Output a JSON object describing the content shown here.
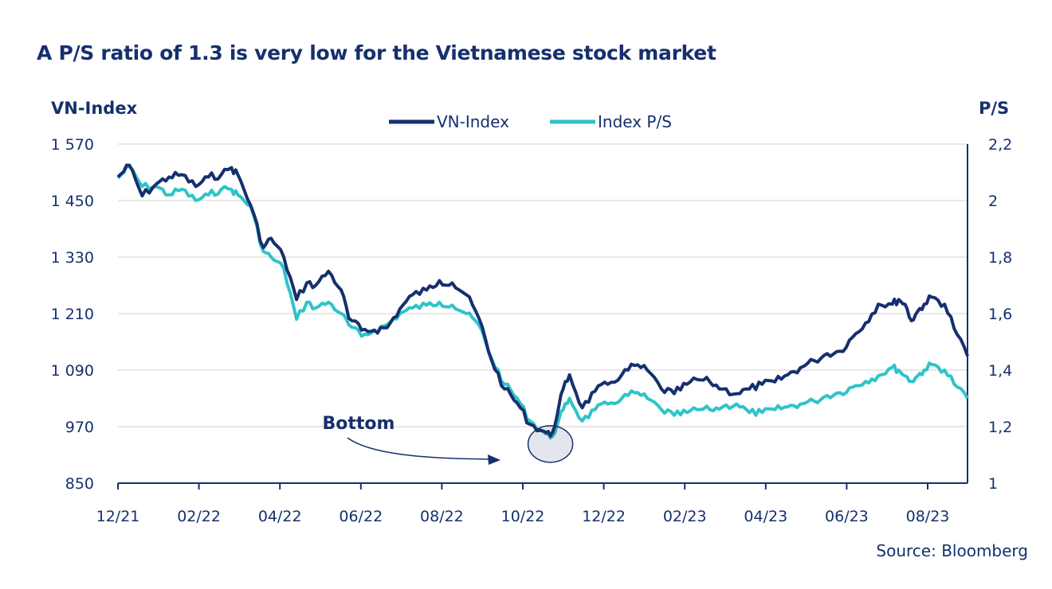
{
  "chart_data": {
    "type": "line",
    "title": "A P/S ratio of 1.3 is very low for the Vietnamese stock market",
    "ylabel": "VN-Index",
    "y2label": "P/S",
    "xlabel": "",
    "x_ticks": [
      "12/21",
      "02/22",
      "04/22",
      "06/22",
      "08/22",
      "10/22",
      "12/22",
      "02/23",
      "04/23",
      "06/23",
      "08/23"
    ],
    "y_ticks": [
      "1 570",
      "1 450",
      "1 330",
      "1 210",
      "1 090",
      "970",
      "850"
    ],
    "y2_ticks": [
      "2,2",
      "2",
      "1,8",
      "1,6",
      "1,4",
      "1,2",
      "1"
    ],
    "ylim": [
      850,
      1570
    ],
    "y2lim": [
      1,
      2.2
    ],
    "legend": "top-center",
    "grid": true,
    "series": [
      {
        "name": "VN-Index",
        "axis": "left",
        "color": "#16306e",
        "points": [
          [
            "2021-12-01",
            1500
          ],
          [
            "2021-12-10",
            1525
          ],
          [
            "2021-12-20",
            1460
          ],
          [
            "2021-12-31",
            1485
          ],
          [
            "2022-01-10",
            1500
          ],
          [
            "2022-01-20",
            1505
          ],
          [
            "2022-01-31",
            1480
          ],
          [
            "2022-02-10",
            1500
          ],
          [
            "2022-02-20",
            1505
          ],
          [
            "2022-02-28",
            1520
          ],
          [
            "2022-03-05",
            1505
          ],
          [
            "2022-03-15",
            1440
          ],
          [
            "2022-03-25",
            1350
          ],
          [
            "2022-03-31",
            1370
          ],
          [
            "2022-04-10",
            1330
          ],
          [
            "2022-04-20",
            1240
          ],
          [
            "2022-04-28",
            1275
          ],
          [
            "2022-05-05",
            1270
          ],
          [
            "2022-05-15",
            1300
          ],
          [
            "2022-05-25",
            1260
          ],
          [
            "2022-05-31",
            1200
          ],
          [
            "2022-06-10",
            1175
          ],
          [
            "2022-06-20",
            1175
          ],
          [
            "2022-06-30",
            1180
          ],
          [
            "2022-07-10",
            1220
          ],
          [
            "2022-07-20",
            1250
          ],
          [
            "2022-07-31",
            1260
          ],
          [
            "2022-08-10",
            1280
          ],
          [
            "2022-08-20",
            1275
          ],
          [
            "2022-08-31",
            1250
          ],
          [
            "2022-09-10",
            1200
          ],
          [
            "2022-09-20",
            1110
          ],
          [
            "2022-09-30",
            1050
          ],
          [
            "2022-10-10",
            1020
          ],
          [
            "2022-10-20",
            975
          ],
          [
            "2022-10-31",
            960
          ],
          [
            "2022-11-05",
            950
          ],
          [
            "2022-11-10",
            990
          ],
          [
            "2022-11-15",
            1050
          ],
          [
            "2022-11-20",
            1080
          ],
          [
            "2022-11-30",
            1010
          ],
          [
            "2022-12-10",
            1045
          ],
          [
            "2022-12-20",
            1060
          ],
          [
            "2022-12-31",
            1080
          ],
          [
            "2023-01-10",
            1100
          ],
          [
            "2023-01-20",
            1090
          ],
          [
            "2023-01-31",
            1050
          ],
          [
            "2023-02-10",
            1040
          ],
          [
            "2023-02-20",
            1060
          ],
          [
            "2023-02-28",
            1070
          ],
          [
            "2023-03-10",
            1065
          ],
          [
            "2023-03-20",
            1050
          ],
          [
            "2023-03-31",
            1040
          ],
          [
            "2023-04-10",
            1050
          ],
          [
            "2023-04-20",
            1060
          ],
          [
            "2023-04-30",
            1065
          ],
          [
            "2023-05-10",
            1080
          ],
          [
            "2023-05-20",
            1095
          ],
          [
            "2023-05-31",
            1110
          ],
          [
            "2023-06-10",
            1125
          ],
          [
            "2023-06-20",
            1130
          ],
          [
            "2023-06-30",
            1160
          ],
          [
            "2023-07-10",
            1190
          ],
          [
            "2023-07-20",
            1230
          ],
          [
            "2023-07-31",
            1230
          ],
          [
            "2023-08-05",
            1240
          ],
          [
            "2023-08-10",
            1230
          ],
          [
            "2023-08-15",
            1195
          ],
          [
            "2023-08-20",
            1215
          ],
          [
            "2023-08-25",
            1230
          ],
          [
            "2023-08-31",
            1245
          ],
          [
            "2023-09-10",
            1230
          ],
          [
            "2023-09-20",
            1165
          ],
          [
            "2023-09-28",
            1120
          ]
        ]
      },
      {
        "name": "Index P/S",
        "axis": "right",
        "color": "#2ec4c8",
        "points": [
          [
            "2021-12-01",
            2.08
          ],
          [
            "2021-12-10",
            2.12
          ],
          [
            "2021-12-20",
            2.05
          ],
          [
            "2021-12-31",
            2.05
          ],
          [
            "2022-01-10",
            2.02
          ],
          [
            "2022-01-20",
            2.04
          ],
          [
            "2022-01-31",
            2.0
          ],
          [
            "2022-02-10",
            2.02
          ],
          [
            "2022-02-20",
            2.04
          ],
          [
            "2022-02-28",
            2.04
          ],
          [
            "2022-03-05",
            2.02
          ],
          [
            "2022-03-15",
            1.98
          ],
          [
            "2022-03-25",
            1.82
          ],
          [
            "2022-03-31",
            1.8
          ],
          [
            "2022-04-10",
            1.76
          ],
          [
            "2022-04-20",
            1.58
          ],
          [
            "2022-04-28",
            1.64
          ],
          [
            "2022-05-05",
            1.62
          ],
          [
            "2022-05-15",
            1.64
          ],
          [
            "2022-05-25",
            1.6
          ],
          [
            "2022-05-31",
            1.56
          ],
          [
            "2022-06-10",
            1.52
          ],
          [
            "2022-06-20",
            1.54
          ],
          [
            "2022-06-30",
            1.56
          ],
          [
            "2022-07-10",
            1.6
          ],
          [
            "2022-07-20",
            1.62
          ],
          [
            "2022-07-31",
            1.63
          ],
          [
            "2022-08-10",
            1.64
          ],
          [
            "2022-08-20",
            1.63
          ],
          [
            "2022-08-31",
            1.6
          ],
          [
            "2022-09-10",
            1.56
          ],
          [
            "2022-09-20",
            1.44
          ],
          [
            "2022-09-30",
            1.35
          ],
          [
            "2022-10-10",
            1.3
          ],
          [
            "2022-10-20",
            1.22
          ],
          [
            "2022-10-31",
            1.18
          ],
          [
            "2022-11-05",
            1.16
          ],
          [
            "2022-11-10",
            1.2
          ],
          [
            "2022-11-15",
            1.26
          ],
          [
            "2022-11-20",
            1.3
          ],
          [
            "2022-11-30",
            1.22
          ],
          [
            "2022-12-10",
            1.26
          ],
          [
            "2022-12-20",
            1.28
          ],
          [
            "2022-12-31",
            1.3
          ],
          [
            "2023-01-10",
            1.32
          ],
          [
            "2023-01-20",
            1.3
          ],
          [
            "2023-01-31",
            1.26
          ],
          [
            "2023-02-10",
            1.24
          ],
          [
            "2023-02-20",
            1.25
          ],
          [
            "2023-02-28",
            1.26
          ],
          [
            "2023-03-10",
            1.26
          ],
          [
            "2023-03-20",
            1.27
          ],
          [
            "2023-03-31",
            1.28
          ],
          [
            "2023-04-10",
            1.25
          ],
          [
            "2023-04-20",
            1.25
          ],
          [
            "2023-04-30",
            1.26
          ],
          [
            "2023-05-10",
            1.27
          ],
          [
            "2023-05-20",
            1.28
          ],
          [
            "2023-05-31",
            1.29
          ],
          [
            "2023-06-10",
            1.31
          ],
          [
            "2023-06-20",
            1.32
          ],
          [
            "2023-06-30",
            1.34
          ],
          [
            "2023-07-10",
            1.36
          ],
          [
            "2023-07-20",
            1.38
          ],
          [
            "2023-07-31",
            1.41
          ],
          [
            "2023-08-05",
            1.4
          ],
          [
            "2023-08-10",
            1.38
          ],
          [
            "2023-08-15",
            1.36
          ],
          [
            "2023-08-20",
            1.38
          ],
          [
            "2023-08-25",
            1.4
          ],
          [
            "2023-08-31",
            1.42
          ],
          [
            "2023-09-10",
            1.4
          ],
          [
            "2023-09-20",
            1.34
          ],
          [
            "2023-09-28",
            1.3
          ]
        ]
      }
    ],
    "annotations": [
      {
        "text": "Bottom",
        "date": "2022-11-05",
        "value": 950
      }
    ]
  },
  "source": "Source: Bloomberg"
}
